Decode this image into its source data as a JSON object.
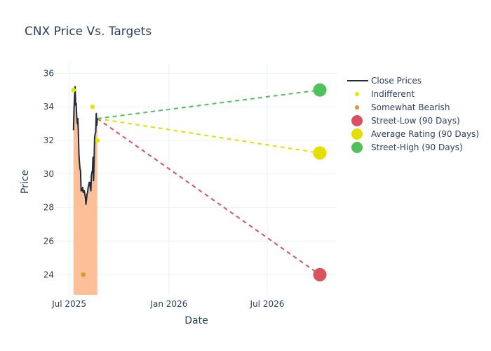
{
  "chart_data": {
    "type": "line",
    "title": "CNX Price Vs. Targets",
    "xlabel": "Date",
    "ylabel": "Price",
    "ylim": [
      22.8,
      36.6
    ],
    "xlim": [
      "2025-06-07",
      "2026-11-06"
    ],
    "x_ticks": [
      {
        "date": "2025-07-01",
        "label": "Jul 2025"
      },
      {
        "date": "2026-01-01",
        "label": "Jan 2026"
      },
      {
        "date": "2026-07-01",
        "label": "Jul 2026"
      }
    ],
    "y_ticks": [
      24,
      26,
      28,
      30,
      32,
      34,
      36
    ],
    "grid": true,
    "legend_position": "top-right",
    "series": [
      {
        "name": "Close Prices",
        "kind": "line-area",
        "color": "#1f2a3a",
        "fill_color": "#fcbf98",
        "points": [
          [
            "2025-07-09",
            32.6
          ],
          [
            "2025-07-10",
            33.9
          ],
          [
            "2025-07-11",
            34.6
          ],
          [
            "2025-07-12",
            35.2
          ],
          [
            "2025-07-13",
            34.1
          ],
          [
            "2025-07-14",
            34.2
          ],
          [
            "2025-07-15",
            33.4
          ],
          [
            "2025-07-16",
            33.0
          ],
          [
            "2025-07-17",
            33.3
          ],
          [
            "2025-07-18",
            32.5
          ],
          [
            "2025-07-19",
            31.2
          ],
          [
            "2025-07-20",
            30.7
          ],
          [
            "2025-07-21",
            30.3
          ],
          [
            "2025-07-22",
            30.2
          ],
          [
            "2025-07-23",
            29.0
          ],
          [
            "2025-07-24",
            29.1
          ],
          [
            "2025-07-25",
            29.0
          ],
          [
            "2025-07-26",
            29.2
          ],
          [
            "2025-07-27",
            28.9
          ],
          [
            "2025-07-28",
            28.9
          ],
          [
            "2025-07-29",
            29.0
          ],
          [
            "2025-07-30",
            28.8
          ],
          [
            "2025-07-31",
            28.6
          ],
          [
            "2025-08-01",
            28.2
          ],
          [
            "2025-08-02",
            28.5
          ],
          [
            "2025-08-03",
            28.8
          ],
          [
            "2025-08-04",
            28.9
          ],
          [
            "2025-08-05",
            29.2
          ],
          [
            "2025-08-06",
            29.3
          ],
          [
            "2025-08-07",
            29.5
          ],
          [
            "2025-08-08",
            29.5
          ],
          [
            "2025-08-09",
            29.2
          ],
          [
            "2025-08-10",
            29.0
          ],
          [
            "2025-08-11",
            29.9
          ],
          [
            "2025-08-12",
            30.1
          ],
          [
            "2025-08-13",
            30.2
          ],
          [
            "2025-08-14",
            31.0
          ],
          [
            "2025-08-15",
            29.6
          ],
          [
            "2025-08-16",
            30.8
          ],
          [
            "2025-08-17",
            32.2
          ],
          [
            "2025-08-18",
            32.4
          ],
          [
            "2025-08-19",
            32.5
          ],
          [
            "2025-08-20",
            33.6
          ],
          [
            "2025-08-21",
            32.9
          ],
          [
            "2025-08-22",
            33.3
          ]
        ]
      },
      {
        "name": "Indifferent",
        "kind": "markers",
        "color": "#e6e600",
        "points": [
          [
            "2025-07-09",
            35.0
          ],
          [
            "2025-08-13",
            34.0
          ],
          [
            "2025-08-22",
            32.0
          ]
        ]
      },
      {
        "name": "Somewhat Bearish",
        "kind": "markers",
        "color": "#e0952a",
        "points": [
          [
            "2025-07-27",
            24.0
          ]
        ]
      },
      {
        "name": "Street-Low (90 Days)",
        "kind": "target",
        "color": "#d9525e",
        "from": [
          "2025-08-22",
          33.3
        ],
        "to": [
          "2026-10-06",
          24.0
        ]
      },
      {
        "name": "Average Rating (90 Days)",
        "kind": "target",
        "color": "#e3e000",
        "from": [
          "2025-08-22",
          33.3
        ],
        "to": [
          "2026-10-06",
          31.25
        ]
      },
      {
        "name": "Street-High (90 Days)",
        "kind": "target",
        "color": "#4fc15a",
        "from": [
          "2025-08-22",
          33.3
        ],
        "to": [
          "2026-10-06",
          35.0
        ]
      }
    ]
  }
}
